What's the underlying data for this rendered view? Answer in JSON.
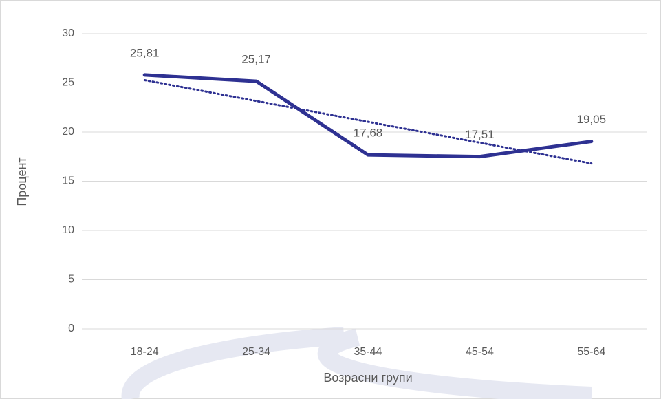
{
  "chart_data": {
    "type": "line",
    "x_label": "Возрасни групи",
    "y_label": "Процент",
    "categories": [
      "18-24",
      "25-34",
      "35-44",
      "45-54",
      "55-64"
    ],
    "series": [
      {
        "name": null,
        "color": "#2e3192",
        "values": [
          25.81,
          25.17,
          17.68,
          17.51,
          19.05
        ],
        "value_labels": [
          "25,81",
          "25,17",
          "17,68",
          "17,51",
          "19,05"
        ]
      }
    ],
    "trendline": "linear",
    "ylim": [
      0,
      30
    ],
    "yticks": [
      0,
      5,
      10,
      15,
      20,
      25,
      30
    ],
    "grid": true
  }
}
